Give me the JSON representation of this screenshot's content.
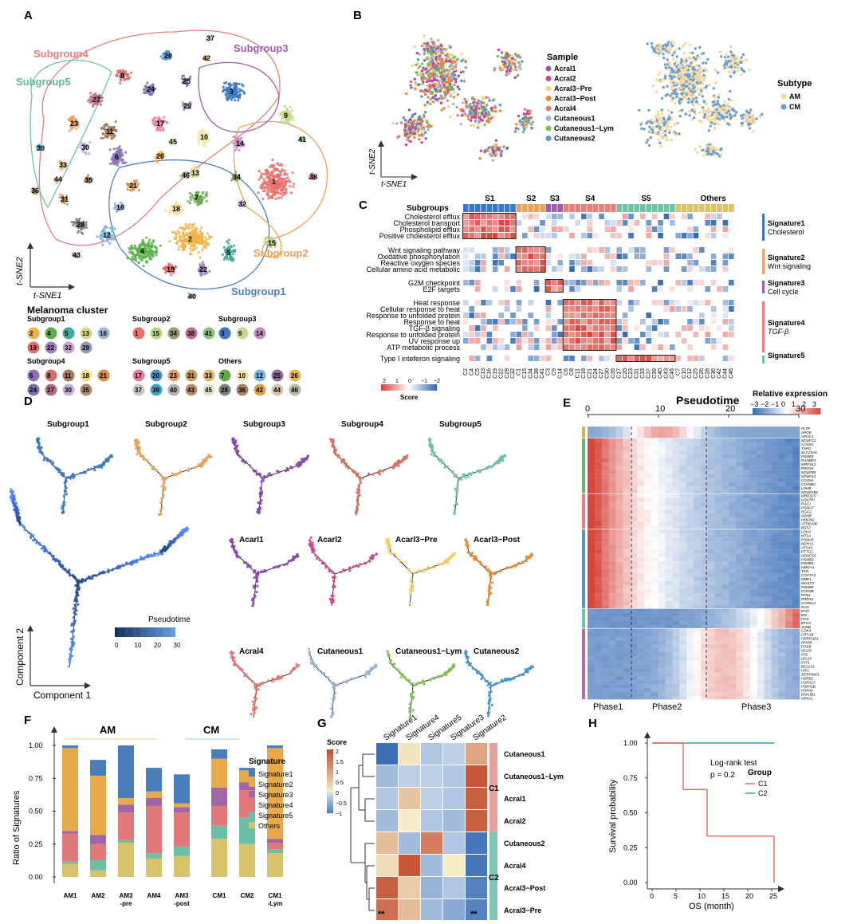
{
  "panels": {
    "a": "A",
    "b": "B",
    "c": "C",
    "d": "D",
    "e": "E",
    "f": "F",
    "g": "G",
    "h": "H"
  },
  "panelA": {
    "subgroup_labels": [
      "Subgroup1",
      "Subgroup2",
      "Subgroup3",
      "Subgroup4",
      "Subgroup5"
    ],
    "cluster_numbers": [
      "1",
      "2",
      "3",
      "4",
      "5",
      "6",
      "7",
      "8",
      "9",
      "10",
      "11",
      "12",
      "13",
      "14",
      "15",
      "16",
      "17",
      "18",
      "19",
      "20",
      "21",
      "22",
      "23",
      "24",
      "25",
      "26",
      "27",
      "28",
      "29",
      "30",
      "31",
      "32",
      "33",
      "34",
      "35",
      "36",
      "37",
      "38",
      "39",
      "40",
      "41",
      "42",
      "43",
      "44",
      "45",
      "46"
    ],
    "axis_y": "t-SNE2",
    "axis_x": "t-SNE1",
    "legend_title": "Melanoma cluster",
    "legend_groups": [
      {
        "name": "Subgroup1",
        "clusters": [
          "2",
          "4",
          "5",
          "13",
          "16",
          "19",
          "22",
          "32",
          "29"
        ]
      },
      {
        "name": "Subgroup2",
        "clusters": [
          "1",
          "15",
          "34",
          "38",
          "41"
        ]
      },
      {
        "name": "Subgroup3",
        "clusters": [
          "3",
          "9",
          "14"
        ]
      },
      {
        "name": "Subgroup4",
        "clusters": [
          "6",
          "8",
          "11",
          "18",
          "21",
          "24",
          "27",
          "30",
          "35"
        ]
      },
      {
        "name": "Subgroup5",
        "clusters": [
          "17",
          "20",
          "23",
          "31",
          "33",
          "37",
          "39",
          "40",
          "43",
          "45"
        ]
      },
      {
        "name": "Others",
        "clusters": [
          "7",
          "10",
          "12",
          "25",
          "26",
          "28",
          "36",
          "42",
          "44",
          "46"
        ]
      }
    ]
  },
  "panelB": {
    "axis_y": "t-SNE2",
    "axis_x": "t-SNE1",
    "sample_title": "Sample",
    "samples": [
      "Acral1",
      "Acral2",
      "Acral3−Pre",
      "Acral3−Post",
      "Acral4",
      "Cutaneous1",
      "Cutaneous1−Lym",
      "Cutaneous2"
    ],
    "subtype_title": "Subtype",
    "subtypes": [
      "AM",
      "CM"
    ]
  },
  "panelC": {
    "subgroups_label": "Subgroups",
    "header_groups": [
      "S1",
      "S2",
      "S3",
      "S4",
      "S5",
      "Others"
    ],
    "pathways": [
      "Cholesterol efflux",
      "Cholesterol transport",
      "Phospholipid efflux",
      "Positive cholesterol efflux",
      "Wnt signaling pathway",
      "Oxidative phosphorylation",
      "Reactive oxygen species",
      "Cellular amino acid metabolic",
      "G2M checkpoint",
      "E2F targets",
      "Heat response",
      "Cellular response to heat",
      "Response to unfolded protein",
      "Response to heat",
      "TGF-β signaling",
      "Response to unfolded protein",
      "UV response up",
      "ATP metabolic process",
      "Type I inteferon signaling"
    ],
    "signatures": [
      {
        "name": "Signature1",
        "desc": "Cholesterol"
      },
      {
        "name": "Signature2",
        "desc": "Wnt signaling"
      },
      {
        "name": "Signature3",
        "desc": "Cell cycle"
      },
      {
        "name": "Signature4",
        "desc": "TGF-β"
      },
      {
        "name": "Signature5",
        "desc": ""
      }
    ],
    "columns": [
      "C2",
      "C4",
      "C5",
      "C13",
      "C16",
      "C19",
      "C22",
      "C29",
      "C32",
      "C1",
      "C15",
      "C34",
      "C38",
      "C41",
      "C3",
      "C9",
      "C14",
      "C6",
      "C8",
      "C11",
      "C18",
      "C21",
      "C24",
      "C27",
      "C30",
      "C35",
      "C17",
      "C20",
      "C23",
      "C31",
      "C33",
      "C37",
      "C39",
      "C40",
      "C43",
      "C45",
      "C7",
      "C10",
      "C12",
      "C25",
      "C26",
      "C28",
      "C36",
      "C42",
      "C44",
      "C46"
    ],
    "score_title": "Score",
    "score_ticks": [
      "2",
      "1",
      "0",
      "−1",
      "−2"
    ]
  },
  "panelD": {
    "top_titles": [
      "Subgroup1",
      "Subgroup2",
      "Subgroup3",
      "Subgroup4",
      "Subgroup5"
    ],
    "sample_titles": [
      "Acarl1",
      "Acarl2",
      "Acarl3−Pre",
      "Acarl3−Post",
      "Acral4",
      "Cutaneous1",
      "Cutaneous1−Lym",
      "Cutaneous2"
    ],
    "legend_title": "Pseudotime",
    "legend_ticks": [
      "0",
      "10",
      "20",
      "30"
    ],
    "axis_y": "Component 2",
    "axis_x": "Component 1"
  },
  "panelE": {
    "title": "Pseudotime",
    "legend_title": "Relative expression",
    "legend_ticks": [
      "−3",
      "−2",
      "−1",
      "0",
      "1",
      "2",
      "3"
    ],
    "axis_ticks": [
      "0",
      "10",
      "20",
      "30"
    ],
    "phases": [
      "Phase1",
      "Phase2",
      "Phase3"
    ],
    "genes": [
      "PLTP",
      "APOE",
      "APOC1",
      "NDUFC2",
      "COX6C",
      "TSPO",
      "SLC25A5",
      "PSMB4",
      "RANBP1",
      "MRPS12",
      "PRDX5",
      "NDUFB5",
      "NDUFA4",
      "COX5A",
      "COX6B1",
      "LDHB",
      "NDUFAB1",
      "MRPS15",
      "UQCRH",
      "RAC1",
      "PSMA7",
      "RGCC",
      "SDHB",
      "HMGN2",
      "ATP6V0B",
      "BST2",
      "LDHA",
      "MT2A",
      "PSMA5",
      "NDHY1",
      "ATOX1",
      "PTTG1",
      "NDUFS5",
      "PSMB3",
      "PSMB1",
      "HMGA1",
      "TXN",
      "COX7A2",
      "NME1",
      "MGST3",
      "PSMB6",
      "COX5B",
      "PFN1",
      "PRDX2",
      "COX6A1",
      "RAN",
      "IFI27",
      "ID2",
      "FOS",
      "BTG2",
      "JUNB",
      "CDK4",
      "CRYAB",
      "HERPUD1",
      "RHOB",
      "FOSB",
      "ISG20",
      "IFI6",
      "ISG15",
      "IFIT1",
      "BCL2A1",
      "HIF1",
      "SERPINE1",
      "HSPB1",
      "HSPA1A",
      "HSPA1B",
      "HSPA6",
      "DNAJB1",
      "NR4A1"
    ]
  },
  "panelF": {
    "group_labels": [
      "AM",
      "CM"
    ],
    "y_axis_label": "Ratio of  Signatures",
    "y_ticks": [
      "0.00",
      "0.25",
      "0.50",
      "0.75",
      "1.00"
    ],
    "categories": [
      "AM1",
      "AM2",
      "AM3\n-pre",
      "AM4",
      "AM3\n-post",
      "CM1",
      "CM2",
      "CM1\n-Lym"
    ],
    "legend_title": "Signature",
    "legend_items": [
      "Signature1",
      "Signature2",
      "Signature3",
      "Signature4",
      "Signature5",
      "Others"
    ],
    "colors": [
      "#4a7ebb",
      "#e8a94b",
      "#a066a8",
      "#df7a78",
      "#6bbfa6",
      "#d9c36a"
    ]
  },
  "panelG": {
    "score_title": "Score",
    "score_ticks": [
      "2",
      "1.5",
      "1",
      "0.5",
      "0",
      "−0.5",
      "−1"
    ],
    "col_labels": [
      "Signature1",
      "Signature4",
      "Signature5",
      "Signature3",
      "Signature2"
    ],
    "row_labels": [
      "Cutaneous1",
      "Cutaneous1−Lym",
      "Acral1",
      "Acral2",
      "Cutaneous2",
      "Acral4",
      "Acral3−Post",
      "Acral3−Pre"
    ],
    "cluster_labels": [
      "C1",
      "C2"
    ],
    "sig_marks": [
      "**",
      "**"
    ]
  },
  "panelH": {
    "y_label": "Survival probability",
    "x_label": "OS (month)",
    "y_ticks": [
      "0.00",
      "0.25",
      "0.50",
      "0.75",
      "1.00"
    ],
    "x_ticks": [
      "0",
      "5",
      "10",
      "15",
      "20",
      "25"
    ],
    "test": "Log-rank test",
    "pvalue": "p = 0.2",
    "legend_title": "Group",
    "legend_items": [
      "C1",
      "C2"
    ]
  },
  "chart_data": [
    {
      "type": "bar",
      "title": "",
      "xlabel": "",
      "ylabel": "Ratio of  Signatures",
      "ylim": [
        0,
        1
      ],
      "categories": [
        "AM1",
        "AM2",
        "AM3-pre",
        "AM4",
        "AM3-post",
        "CM1",
        "CM2",
        "CM1-Lym"
      ],
      "series": [
        {
          "name": "Signature1",
          "values": [
            0.02,
            0.12,
            0.4,
            0.18,
            0.22,
            0.07,
            0.02,
            0.02
          ]
        },
        {
          "name": "Signature2",
          "values": [
            0.63,
            0.45,
            0.05,
            0.05,
            0.03,
            0.22,
            0.09,
            0.69
          ]
        },
        {
          "name": "Signature3",
          "values": [
            0.02,
            0.07,
            0.06,
            0.06,
            0.04,
            0.14,
            0.06,
            0.03
          ]
        },
        {
          "name": "Signature4",
          "values": [
            0.21,
            0.12,
            0.21,
            0.36,
            0.26,
            0.15,
            0.21,
            0.05
          ]
        },
        {
          "name": "Signature5",
          "values": [
            0.02,
            0.08,
            0.02,
            0.04,
            0.07,
            0.1,
            0.2,
            0.03
          ]
        },
        {
          "name": "Others",
          "values": [
            0.1,
            0.05,
            0.26,
            0.14,
            0.16,
            0.29,
            0.25,
            0.18
          ]
        }
      ]
    },
    {
      "type": "line",
      "title": "",
      "xlabel": "OS (month)",
      "ylabel": "Survival probability",
      "ylim": [
        0,
        1
      ],
      "xlim": [
        0,
        25
      ],
      "series": [
        {
          "name": "C1",
          "x": [
            0,
            6.5,
            6.5,
            11.5,
            11.5,
            25.5,
            25.5
          ],
          "y": [
            1,
            1,
            0.667,
            0.667,
            0.333,
            0.333,
            0
          ]
        },
        {
          "name": "C2",
          "x": [
            0,
            25.5
          ],
          "y": [
            1,
            1
          ]
        }
      ]
    },
    {
      "type": "heatmap",
      "title": "",
      "x_categories": [
        "Signature1",
        "Signature4",
        "Signature5",
        "Signature3",
        "Signature2"
      ],
      "y_categories": [
        "Cutaneous1",
        "Cutaneous1−Lym",
        "Acral1",
        "Acral2",
        "Cutaneous2",
        "Acral4",
        "Acral3−Post",
        "Acral3−Pre"
      ],
      "values": [
        [
          -1.2,
          0.1,
          -0.3,
          -0.2,
          0.9
        ],
        [
          -0.4,
          -0.2,
          -0.2,
          -0.3,
          1.9
        ],
        [
          -0.3,
          0.5,
          -0.2,
          -0.3,
          1.8
        ],
        [
          -0.4,
          0.0,
          -0.3,
          -0.4,
          1.8
        ],
        [
          0.6,
          -0.4,
          1.4,
          -0.3,
          -1.1
        ],
        [
          0.2,
          1.9,
          -0.4,
          0.0,
          -1.1
        ],
        [
          1.8,
          0.4,
          -0.5,
          -0.3,
          -1.0
        ],
        [
          1.6,
          0.6,
          -0.4,
          -0.6,
          -1.0
        ]
      ]
    }
  ]
}
